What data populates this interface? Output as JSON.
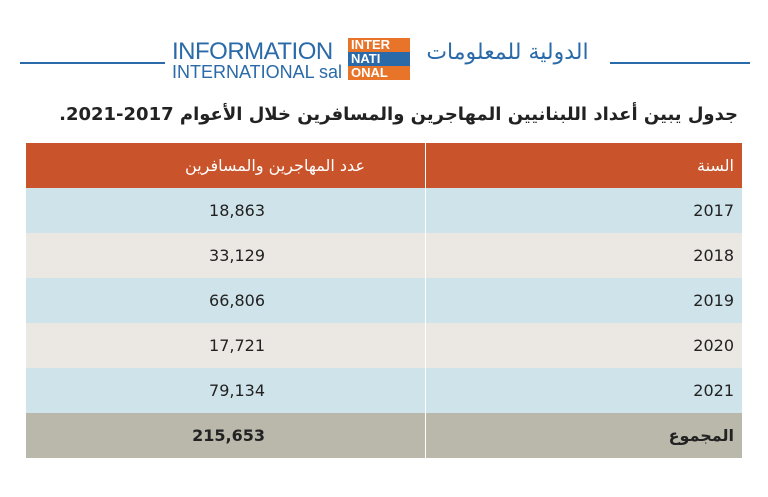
{
  "header": {
    "logo_en_line1": "INFORMATION",
    "logo_en_line2": "INTERNATIONAL sal",
    "logo_mark": [
      "INTER",
      "NATI",
      "ONAL"
    ],
    "logo_ar": "الدولية للمعلومات"
  },
  "title": "جدول يبين أعداد اللبنانيين المهاجرين والمسافرين خلال الأعوام 2017-2021.",
  "table": {
    "columns": [
      "السنة",
      "عدد المهاجرين والمسافرين"
    ],
    "rows": [
      [
        "2017",
        "18,863"
      ],
      [
        "2018",
        "33,129"
      ],
      [
        "2019",
        "66,806"
      ],
      [
        "2020",
        "17,721"
      ],
      [
        "2021",
        "79,134"
      ]
    ],
    "total": [
      "المجموع",
      "215,653"
    ]
  }
}
